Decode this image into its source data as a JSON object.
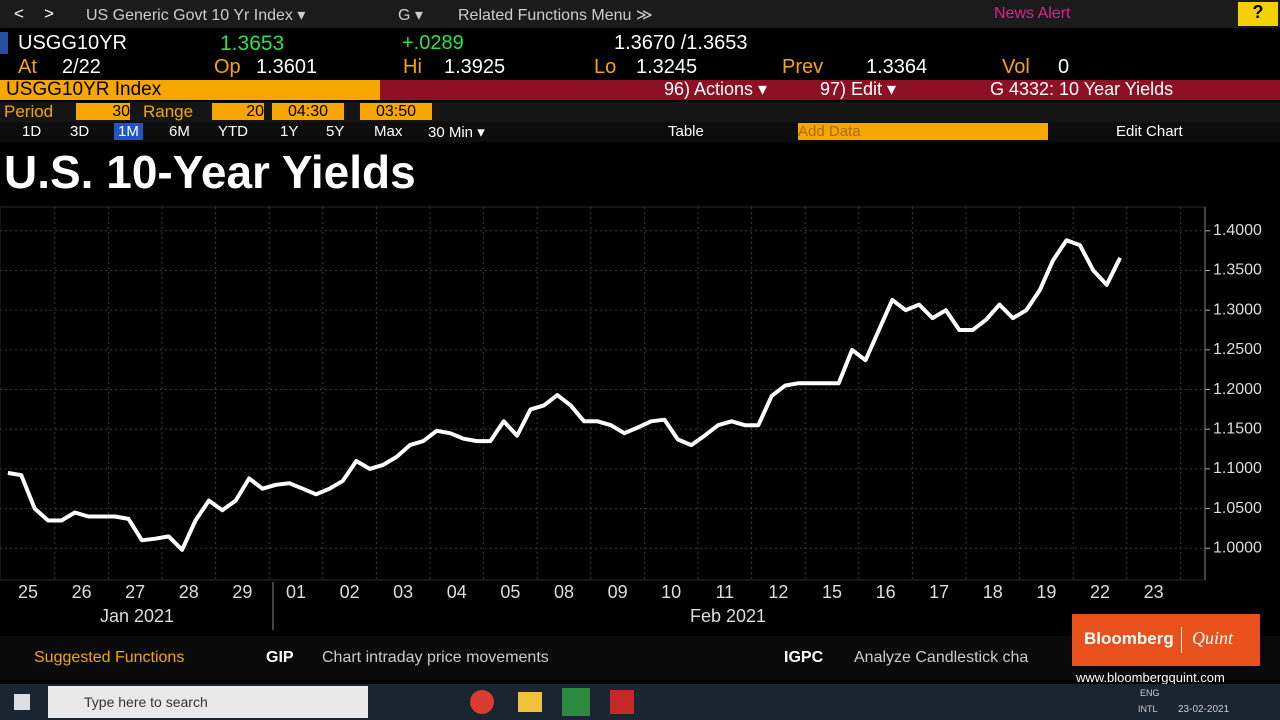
{
  "top_bar": {
    "back": "<",
    "forward": ">",
    "security": "US Generic Govt 10 Yr Index ▾",
    "function": "G ▾",
    "menu": "Related Functions Menu ≫",
    "news": "News Alert",
    "help": "?"
  },
  "quote": {
    "ticker": "USGG10YR",
    "last": "1.3653",
    "change": "+.0289",
    "bid_ask": "1.3670 /1.3653"
  },
  "stats": {
    "at_label": "At",
    "at": "2/22",
    "open_label": "Op",
    "open": "1.3601",
    "high_label": "Hi",
    "high": "1.3925",
    "low_label": "Lo",
    "low": "1.3245",
    "prev_label": "Prev",
    "prev": "1.3364",
    "vol_label": "Vol",
    "vol": "0"
  },
  "command_bar": {
    "security": "USGG10YR Index",
    "actions": "96) Actions ▾",
    "edit": "97) Edit ▾",
    "chart_name": "G 4332: 10 Year Yields"
  },
  "settings": {
    "period_label": "Period",
    "period": "30",
    "range_label": "Range",
    "range": "20",
    "start": "04:30",
    "end": "03:50"
  },
  "toolbar": {
    "ranges": [
      "1D",
      "3D",
      "1M",
      "6M",
      "YTD",
      "1Y",
      "5Y",
      "Max"
    ],
    "interval": "30 Min ▾",
    "table": "Table",
    "add_data": "Add Data",
    "edit_chart": "Edit Chart"
  },
  "chart_data": {
    "type": "line",
    "title": "U.S. 10-Year Yields",
    "color": "#ffffff",
    "grid": true,
    "xticks": [
      "25",
      "26",
      "27",
      "28",
      "29",
      "01",
      "02",
      "03",
      "04",
      "05",
      "08",
      "09",
      "10",
      "11",
      "12",
      "15",
      "16",
      "17",
      "18",
      "19",
      "22",
      "23"
    ],
    "months": [
      "Jan 2021",
      "Feb 2021"
    ],
    "x": [
      "25",
      "25",
      "25",
      "25",
      "26",
      "26",
      "26",
      "26",
      "27",
      "27",
      "27",
      "27",
      "28",
      "28",
      "28",
      "28",
      "29",
      "29",
      "29",
      "29",
      "01",
      "01",
      "01",
      "01",
      "02",
      "02",
      "02",
      "02",
      "03",
      "03",
      "03",
      "03",
      "04",
      "04",
      "04",
      "04",
      "05",
      "05",
      "05",
      "05",
      "08",
      "08",
      "08",
      "08",
      "09",
      "09",
      "09",
      "09",
      "10",
      "10",
      "10",
      "10",
      "11",
      "11",
      "11",
      "11",
      "12",
      "12",
      "12",
      "12",
      "15",
      "15",
      "15",
      "15",
      "16",
      "16",
      "16",
      "16",
      "17",
      "17",
      "17",
      "17",
      "18",
      "18",
      "18",
      "18",
      "19",
      "19",
      "19",
      "19",
      "22",
      "22",
      "22",
      "22"
    ],
    "values": [
      1.095,
      1.092,
      1.05,
      1.035,
      1.035,
      1.045,
      1.04,
      1.04,
      1.04,
      1.037,
      1.01,
      1.012,
      1.015,
      0.998,
      1.035,
      1.06,
      1.048,
      1.06,
      1.088,
      1.075,
      1.08,
      1.082,
      1.075,
      1.068,
      1.075,
      1.085,
      1.11,
      1.1,
      1.105,
      1.115,
      1.13,
      1.135,
      1.148,
      1.145,
      1.138,
      1.135,
      1.135,
      1.16,
      1.142,
      1.175,
      1.18,
      1.193,
      1.18,
      1.16,
      1.16,
      1.155,
      1.145,
      1.152,
      1.16,
      1.162,
      1.137,
      1.13,
      1.142,
      1.155,
      1.16,
      1.155,
      1.155,
      1.192,
      1.205,
      1.208,
      1.208,
      1.208,
      1.208,
      1.25,
      1.237,
      1.275,
      1.313,
      1.3,
      1.307,
      1.29,
      1.3,
      1.275,
      1.275,
      1.288,
      1.307,
      1.29,
      1.3,
      1.325,
      1.363,
      1.388,
      1.382,
      1.35,
      1.332,
      1.366
    ],
    "ylim": [
      0.96,
      1.43
    ],
    "yticks": [
      {
        "value": 1.0,
        "label": "1.0000"
      },
      {
        "value": 1.05,
        "label": "1.0500"
      },
      {
        "value": 1.1,
        "label": "1.1000"
      },
      {
        "value": 1.15,
        "label": "1.1500"
      },
      {
        "value": 1.2,
        "label": "1.2000"
      },
      {
        "value": 1.25,
        "label": "1.2500"
      },
      {
        "value": 1.3,
        "label": "1.3000"
      },
      {
        "value": 1.35,
        "label": "1.3500"
      },
      {
        "value": 1.4,
        "label": "1.4000"
      }
    ]
  },
  "footer": {
    "suggested": "Suggested Functions",
    "functions": [
      {
        "code": "GIP",
        "desc": "Chart intraday price movements"
      },
      {
        "code": "IGPC",
        "desc": "Analyze Candlestick cha"
      }
    ]
  },
  "watermark": {
    "brand": "Bloomberg",
    "sub": "Quint",
    "url": "www.bloombergquint.com"
  },
  "taskbar": {
    "search": "Type here to search",
    "lang": "ENG",
    "layout": "INTL",
    "date": "23-02-2021"
  }
}
